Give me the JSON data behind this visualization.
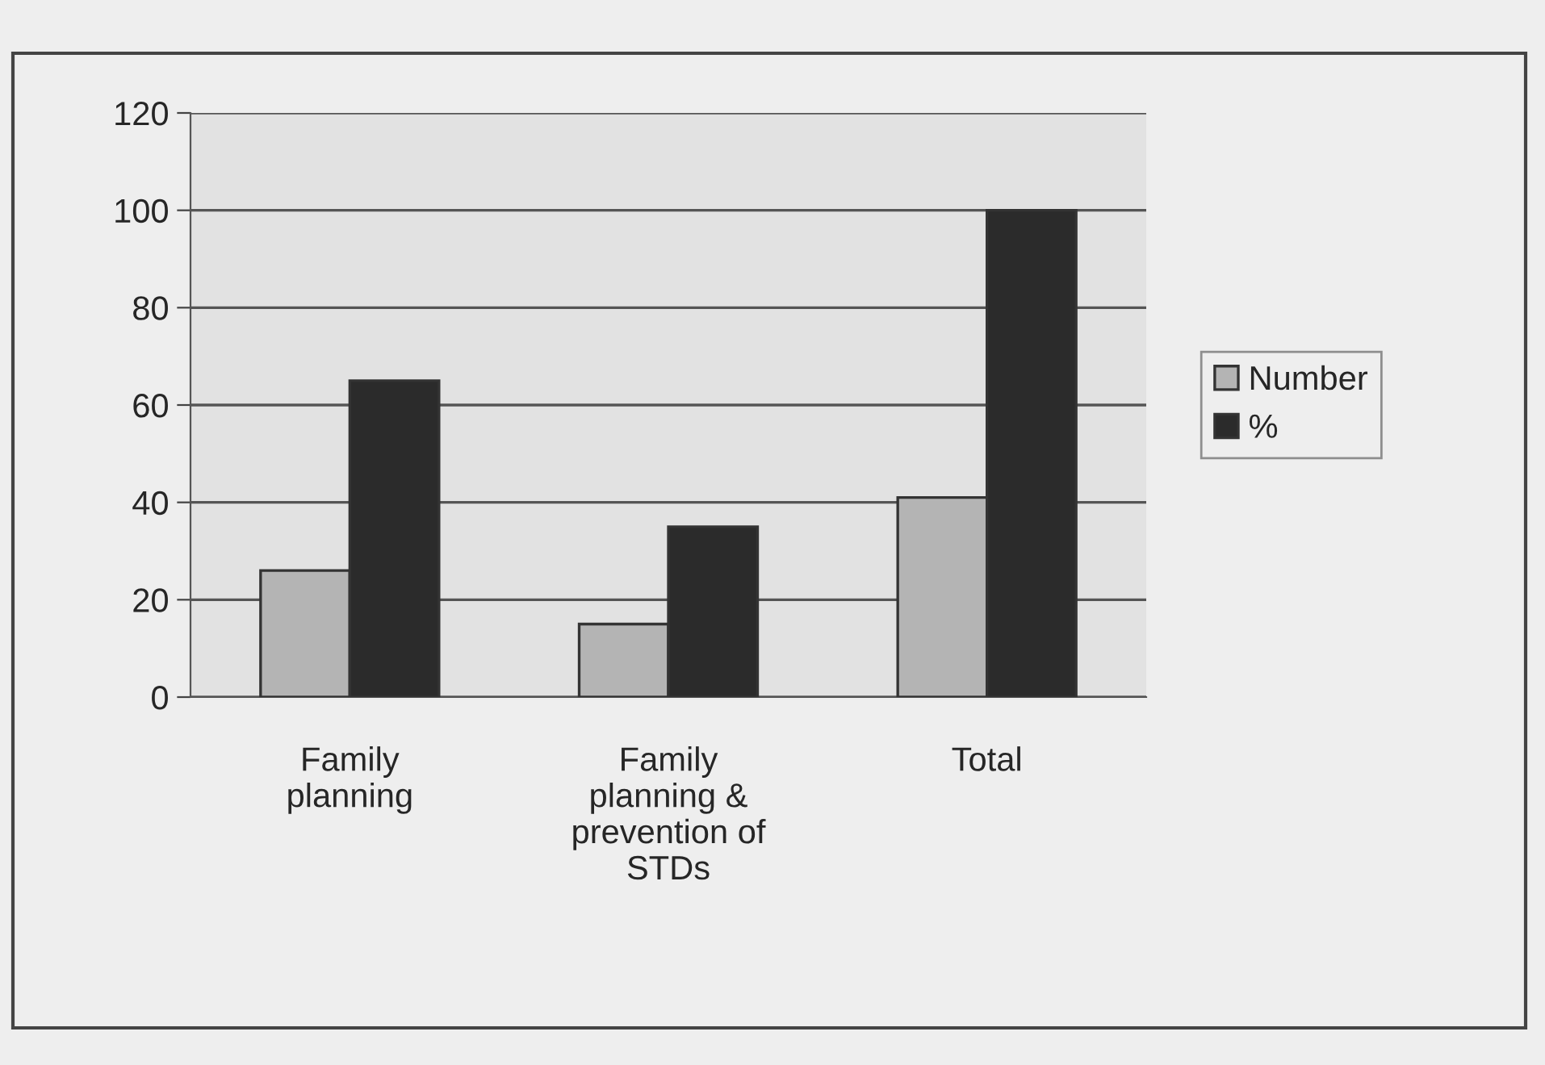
{
  "chart_data": {
    "type": "bar",
    "categories": [
      "Family\nplanning",
      "Family\nplanning &\nprevention of\nSTDs",
      "Total"
    ],
    "series": [
      {
        "name": "Number",
        "color": "#b4b4b4",
        "values": [
          26,
          15,
          41
        ]
      },
      {
        "name": "%",
        "color": "#2b2b2b",
        "values": [
          65,
          35,
          100
        ]
      }
    ],
    "ylim": [
      0,
      120
    ],
    "yticks": [
      0,
      20,
      40,
      60,
      80,
      100,
      120
    ],
    "grid": "y",
    "legend": "right"
  }
}
